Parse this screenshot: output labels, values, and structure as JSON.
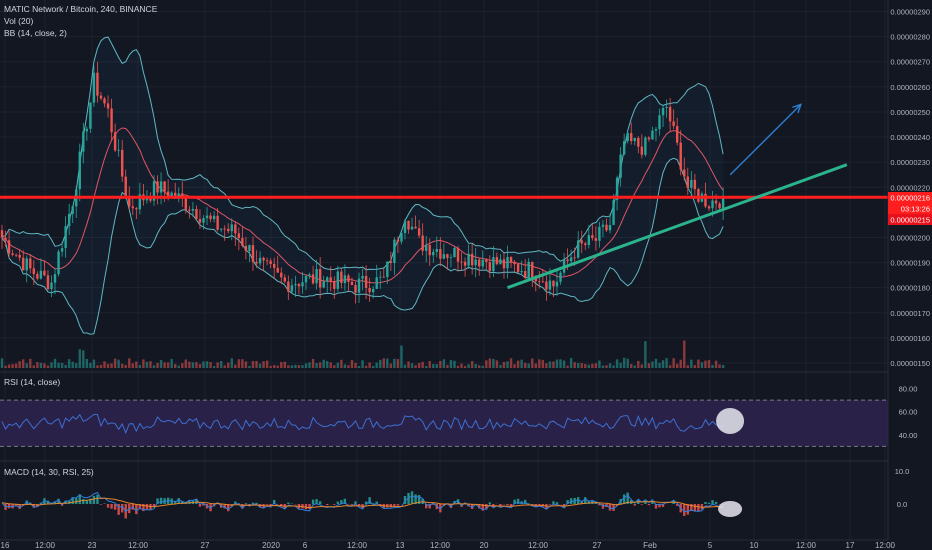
{
  "header": {
    "symbol_line": "MATIC Network / Bitcoin, 240, BINANCE",
    "vol_label": "Vol (20)",
    "bb_label": "BB (14, close, 2)",
    "rsi_label": "RSI (14, close)",
    "macd_label": "MACD (14, 30, RSI, 25)"
  },
  "colors": {
    "background": "#131722",
    "up": "#26a69a",
    "down": "#ef5350",
    "bb": "#5fb7c2",
    "bb_basis": "#e05566",
    "resistance": "#ff1e1e",
    "support": "#2bb38c",
    "arrow": "#2d7fd2",
    "rsi": "#3d6fd1",
    "rsi_band": "#2a2148",
    "macd": "#2f7fe0",
    "signal": "#e8862c"
  },
  "price_axis": {
    "ticks": [
      "0.00000290",
      "0.00000280",
      "0.00000270",
      "0.00000260",
      "0.00000250",
      "0.00000240",
      "0.00000230",
      "0.00000220",
      "0.00000200",
      "0.00000190",
      "0.00000180",
      "0.00000170",
      "0.00000160",
      "0.00000150"
    ],
    "last_price": "0.00000216",
    "countdown": "03:13:26",
    "line_price": "0.00000215"
  },
  "rsi_axis": {
    "ticks": [
      "80.00",
      "60.00",
      "40.00"
    ]
  },
  "macd_axis": {
    "ticks": [
      "10.0",
      "0.0"
    ]
  },
  "time_axis": {
    "ticks": [
      "16",
      "12:00",
      "23",
      "12:00",
      "27",
      "2020",
      "6",
      "12:00",
      "13",
      "12:00",
      "20",
      "12:00",
      "27",
      "Feb",
      "5",
      "10",
      "12:00",
      "17",
      "12:00"
    ]
  },
  "chart_data": {
    "type": "candlestick",
    "title": "MATIC Network / Bitcoin, 240, BINANCE",
    "ylim": [
      1.48e-06,
      2.93e-06
    ],
    "horizontal_level": 2.16e-06,
    "rsi_levels": [
      70,
      30
    ],
    "rsi_ylim": [
      20,
      90
    ],
    "price_path_anchors": [
      {
        "i": 0,
        "v": 2e-06
      },
      {
        "i": 8,
        "v": 1.87e-06
      },
      {
        "i": 14,
        "v": 1.82e-06
      },
      {
        "i": 20,
        "v": 2.15e-06
      },
      {
        "i": 26,
        "v": 2.62e-06
      },
      {
        "i": 30,
        "v": 2.5e-06
      },
      {
        "i": 36,
        "v": 2.12e-06
      },
      {
        "i": 44,
        "v": 2.2e-06
      },
      {
        "i": 52,
        "v": 2.14e-06
      },
      {
        "i": 60,
        "v": 2.05e-06
      },
      {
        "i": 66,
        "v": 2.02e-06
      },
      {
        "i": 74,
        "v": 1.88e-06
      },
      {
        "i": 80,
        "v": 1.82e-06
      },
      {
        "i": 90,
        "v": 1.84e-06
      },
      {
        "i": 100,
        "v": 1.81e-06
      },
      {
        "i": 108,
        "v": 1.83e-06
      },
      {
        "i": 114,
        "v": 2.1e-06
      },
      {
        "i": 118,
        "v": 1.98e-06
      },
      {
        "i": 126,
        "v": 1.94e-06
      },
      {
        "i": 134,
        "v": 1.92e-06
      },
      {
        "i": 142,
        "v": 1.89e-06
      },
      {
        "i": 150,
        "v": 1.87e-06
      },
      {
        "i": 156,
        "v": 1.81e-06
      },
      {
        "i": 162,
        "v": 1.95e-06
      },
      {
        "i": 168,
        "v": 1.99e-06
      },
      {
        "i": 172,
        "v": 2.05e-06
      },
      {
        "i": 176,
        "v": 2.38e-06
      },
      {
        "i": 182,
        "v": 2.36e-06
      },
      {
        "i": 188,
        "v": 2.52e-06
      },
      {
        "i": 194,
        "v": 2.2e-06
      },
      {
        "i": 200,
        "v": 2.14e-06
      },
      {
        "i": 204,
        "v": 2.16e-06
      }
    ],
    "trendline_support": [
      {
        "i": 143,
        "v": 1.8e-06
      },
      {
        "i": 239,
        "v": 2.29e-06
      }
    ],
    "arrow": [
      {
        "i": 206,
        "v": 2.25e-06
      },
      {
        "i": 226,
        "v": 2.53e-06
      }
    ],
    "rsi_marker": {
      "i": 202,
      "v": 52
    },
    "macd_marker": {
      "i": 202,
      "v": -1.5
    }
  }
}
